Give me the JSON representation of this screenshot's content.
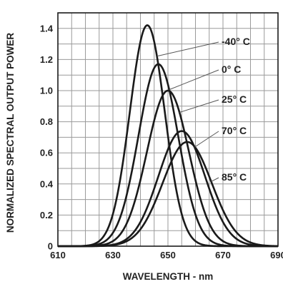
{
  "chart_data": {
    "type": "line",
    "title": "",
    "xlabel": "WAVELENGTH - nm",
    "ylabel": "NORMALIZED SPECTRAL OUTPUT POWER",
    "xlim": [
      610,
      690
    ],
    "ylim": [
      0,
      1.5
    ],
    "xticks": [
      610,
      630,
      650,
      670,
      690
    ],
    "xtick_labels": [
      "610",
      "630",
      "650",
      "670",
      "690"
    ],
    "yticks": [
      0,
      0.2,
      0.4,
      0.6,
      0.8,
      1.0,
      1.2,
      1.4
    ],
    "ytick_labels": [
      "0",
      "0.2",
      "0.4",
      "0.6",
      "0.8",
      "1.0",
      "1.2",
      "1.4"
    ],
    "grid": true,
    "series": [
      {
        "name": "-40° C",
        "peak_wavelength": 642.5,
        "peak_value": 1.42,
        "fwhm": 15
      },
      {
        "name": "0° C",
        "peak_wavelength": 646.5,
        "peak_value": 1.17,
        "fwhm": 17
      },
      {
        "name": "25° C",
        "peak_wavelength": 650,
        "peak_value": 1.0,
        "fwhm": 18
      },
      {
        "name": "70° C",
        "peak_wavelength": 655,
        "peak_value": 0.74,
        "fwhm": 20
      },
      {
        "name": "85° C",
        "peak_wavelength": 657,
        "peak_value": 0.67,
        "fwhm": 21
      }
    ]
  }
}
